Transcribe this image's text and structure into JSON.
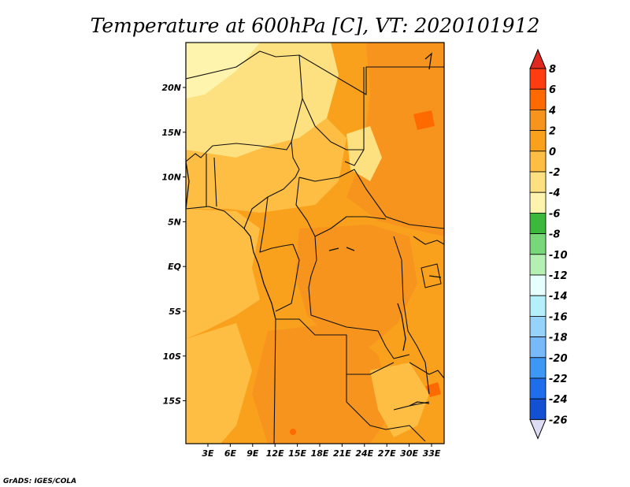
{
  "title": "Temperature at 600hPa [C], VT: 2020101912",
  "credit": "GrADS: IGES/COLA",
  "map": {
    "lon_labels": [
      "3E",
      "6E",
      "9E",
      "12E",
      "15E",
      "18E",
      "21E",
      "24E",
      "27E",
      "30E",
      "33E"
    ],
    "lat_labels": [
      "20N",
      "15N",
      "10N",
      "5N",
      "EQ",
      "5S",
      "10S",
      "15S"
    ]
  },
  "colorbar": {
    "levels": [
      {
        "label": "8",
        "color": "#ff3d10"
      },
      {
        "label": "6",
        "color": "#ff6a00"
      },
      {
        "label": "4",
        "color": "#f7941e"
      },
      {
        "label": "2",
        "color": "#f9a11c"
      },
      {
        "label": "0",
        "color": "#fdbe43"
      },
      {
        "label": "-2",
        "color": "#fde07f"
      },
      {
        "label": "-4",
        "color": "#fff4ad"
      },
      {
        "label": "-6",
        "color": "#3cb83c"
      },
      {
        "label": "-8",
        "color": "#78d778"
      },
      {
        "label": "-10",
        "color": "#b4f0b4"
      },
      {
        "label": "-12",
        "color": "#e6ffff"
      },
      {
        "label": "-14",
        "color": "#b4f0fa"
      },
      {
        "label": "-16",
        "color": "#96d2fa"
      },
      {
        "label": "-18",
        "color": "#78b9fa"
      },
      {
        "label": "-20",
        "color": "#3c97f5"
      },
      {
        "label": "-22",
        "color": "#1e6eeb"
      },
      {
        "label": "-24",
        "color": "#1450d2"
      },
      {
        "label": "-26",
        "color": "#0a1e78"
      }
    ],
    "top_color": "#e0281e",
    "bottom_color": "#dcdcf5"
  }
}
